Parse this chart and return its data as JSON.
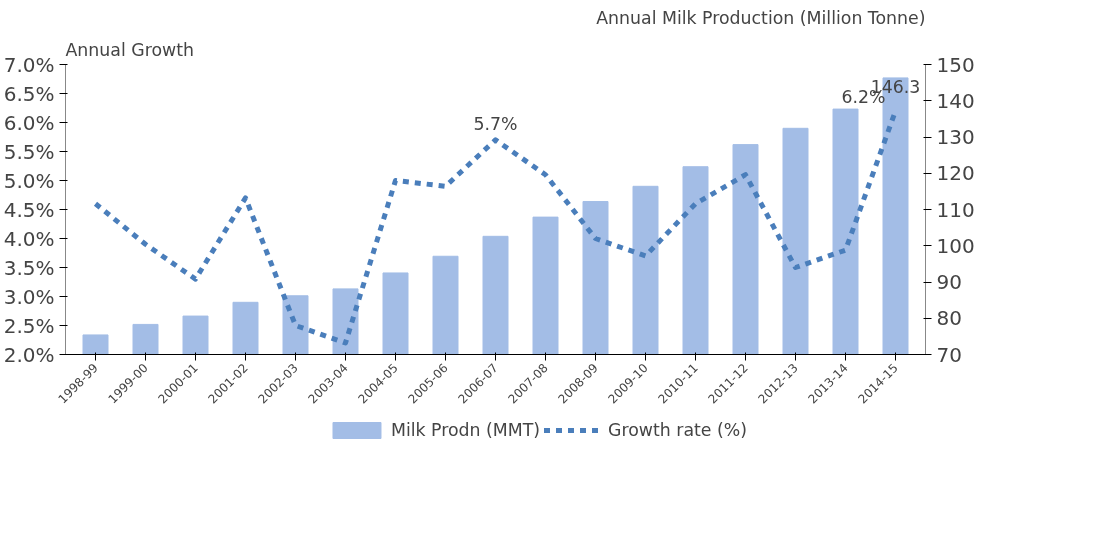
{
  "chart_data": {
    "type": "bar",
    "ylabel": "Annual Growth",
    "y2label": "Annual Milk Production (Million Tonne)",
    "categories": [
      "1998-99",
      "1999-00",
      "2000-01",
      "2001-02",
      "2002-03",
      "2003-04",
      "2004-05",
      "2005-06",
      "2006-07",
      "2007-08",
      "2008-09",
      "2009-10",
      "2010-11",
      "2011-12",
      "2012-13",
      "2013-14",
      "2014-15"
    ],
    "series": [
      {
        "name": "Milk Prodn (MMT)",
        "axis": "y2",
        "color": "#a3bde6",
        "values": [
          75.4,
          78.3,
          80.6,
          84.4,
          86.2,
          88.1,
          92.5,
          97.1,
          102.6,
          107.9,
          112.2,
          116.4,
          121.8,
          127.9,
          132.4,
          137.7,
          146.3
        ],
        "value_labels": [
          null,
          null,
          null,
          null,
          null,
          null,
          null,
          null,
          null,
          null,
          null,
          null,
          null,
          null,
          null,
          null,
          "146.3"
        ]
      },
      {
        "name": "Growth rate (%)",
        "type": "line",
        "axis": "y",
        "color": "#4a7ebb",
        "line_style": "dashed",
        "values": [
          4.6,
          3.9,
          3.3,
          4.7,
          2.5,
          2.2,
          5.0,
          4.9,
          5.7,
          5.1,
          4.0,
          3.7,
          4.6,
          5.1,
          3.5,
          3.8,
          6.2
        ],
        "value_labels": [
          null,
          null,
          null,
          null,
          null,
          null,
          null,
          null,
          "5.7%",
          null,
          null,
          null,
          null,
          null,
          null,
          null,
          "6.2%"
        ]
      }
    ],
    "ylim": [
      2.0,
      7.0
    ],
    "yticks": [
      {
        "value": 2.0,
        "label": "2.0%"
      },
      {
        "value": 2.5,
        "label": "2.5%"
      },
      {
        "value": 3.0,
        "label": "3.0%"
      },
      {
        "value": 3.5,
        "label": "3.5%"
      },
      {
        "value": 4.0,
        "label": "4.0%"
      },
      {
        "value": 4.5,
        "label": "4.5%"
      },
      {
        "value": 5.0,
        "label": "5.0%"
      },
      {
        "value": 5.5,
        "label": "5.5%"
      },
      {
        "value": 6.0,
        "label": "6.0%"
      },
      {
        "value": 6.5,
        "label": "6.5%"
      },
      {
        "value": 7.0,
        "label": "7.0%"
      }
    ],
    "y2lim": [
      70,
      150
    ],
    "y2ticks": [
      70,
      80,
      90,
      100,
      110,
      120,
      130,
      140,
      150
    ],
    "grid": false,
    "legend": "bottom"
  }
}
